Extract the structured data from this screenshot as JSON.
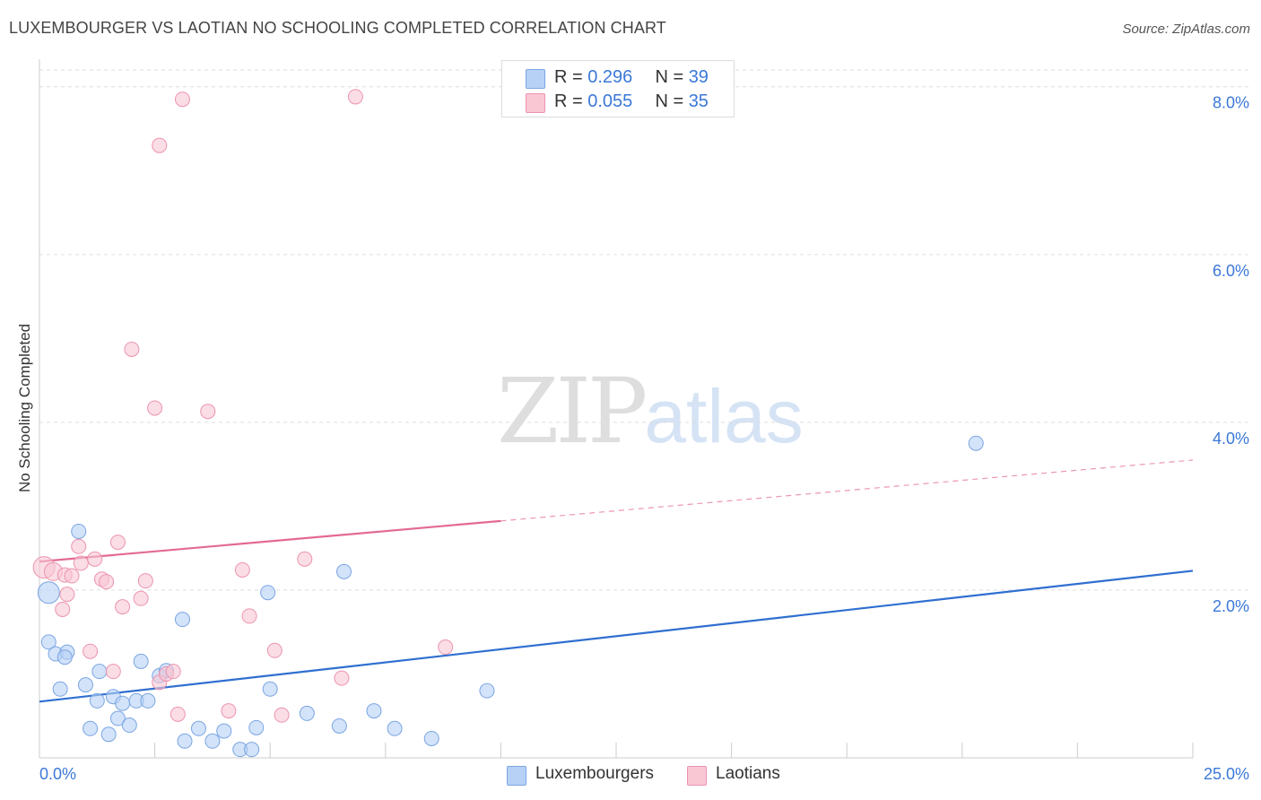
{
  "header": {
    "title": "LUXEMBOURGER VS LAOTIAN NO SCHOOLING COMPLETED CORRELATION CHART",
    "source": "Source: ZipAtlas.com"
  },
  "watermark": {
    "zip": "ZIP",
    "atlas": "atlas"
  },
  "legend": {
    "series": [
      {
        "r_label": "R =",
        "r_value": "0.296",
        "n_label": "N =",
        "n_value": "39"
      },
      {
        "r_label": "R =",
        "r_value": "0.055",
        "n_label": "N =",
        "n_value": "35"
      }
    ]
  },
  "bottom_legend": [
    "Luxembourgers",
    "Laotians"
  ],
  "chart_data": {
    "type": "scatter",
    "title": "LUXEMBOURGER VS LAOTIAN NO SCHOOLING COMPLETED CORRELATION CHART",
    "xlabel": "",
    "ylabel": "No Schooling Completed",
    "xlim": [
      0,
      25
    ],
    "ylim": [
      0,
      8.2
    ],
    "x_tick_labels": [
      {
        "value": 0,
        "label": "0.0%"
      },
      {
        "value": 25,
        "label": "25.0%"
      }
    ],
    "y_tick_labels": [
      {
        "value": 2,
        "label": "2.0%"
      },
      {
        "value": 4,
        "label": "4.0%"
      },
      {
        "value": 6,
        "label": "6.0%"
      },
      {
        "value": 8,
        "label": "8.0%"
      }
    ],
    "colors": {
      "Luxembourgers": {
        "fill": "#b6d1f5",
        "stroke": "#7aa5e3",
        "line": "#2f6fd0",
        "swatch": "#b6d1f5"
      },
      "Laotians": {
        "fill": "#f9c6d4",
        "stroke": "#ec94b0",
        "line": "#e36a92",
        "swatch": "#f9c6d4"
      }
    },
    "series": [
      {
        "name": "Luxembourgers",
        "r": 0.296,
        "n": 39,
        "trend": {
          "x0": 0,
          "y0": 0.67,
          "x1": 25,
          "y1": 2.23,
          "solid_until": 25
        },
        "points": [
          [
            0.2,
            1.97,
            12
          ],
          [
            0.85,
            2.7,
            8
          ],
          [
            0.2,
            1.38,
            8
          ],
          [
            0.35,
            1.24,
            8
          ],
          [
            0.6,
            1.26,
            8
          ],
          [
            0.45,
            0.82,
            8
          ],
          [
            0.55,
            1.2,
            8
          ],
          [
            1.0,
            0.87,
            8
          ],
          [
            1.3,
            1.03,
            8
          ],
          [
            1.25,
            0.68,
            8
          ],
          [
            1.6,
            0.73,
            8
          ],
          [
            1.8,
            0.65,
            8
          ],
          [
            2.1,
            0.68,
            8
          ],
          [
            2.35,
            0.68,
            8
          ],
          [
            2.2,
            1.15,
            8
          ],
          [
            2.6,
            0.98,
            8
          ],
          [
            2.75,
            1.04,
            8
          ],
          [
            1.1,
            0.35,
            8
          ],
          [
            1.5,
            0.28,
            8
          ],
          [
            1.7,
            0.47,
            8
          ],
          [
            1.95,
            0.39,
            8
          ],
          [
            3.1,
            1.65,
            8
          ],
          [
            3.15,
            0.2,
            8
          ],
          [
            3.45,
            0.35,
            8
          ],
          [
            3.75,
            0.2,
            8
          ],
          [
            4.0,
            0.32,
            8
          ],
          [
            4.35,
            0.1,
            8
          ],
          [
            4.6,
            0.1,
            8
          ],
          [
            4.7,
            0.36,
            8
          ],
          [
            4.95,
            1.97,
            8
          ],
          [
            5.0,
            0.82,
            8
          ],
          [
            5.8,
            0.53,
            8
          ],
          [
            6.5,
            0.38,
            8
          ],
          [
            6.6,
            2.22,
            8
          ],
          [
            7.25,
            0.56,
            8
          ],
          [
            7.7,
            0.35,
            8
          ],
          [
            8.5,
            0.23,
            8
          ],
          [
            9.7,
            0.8,
            8
          ],
          [
            20.3,
            3.75,
            8
          ]
        ]
      },
      {
        "name": "Laotians",
        "r": 0.055,
        "n": 35,
        "trend": {
          "x0": 0,
          "y0": 2.34,
          "x1": 25,
          "y1": 3.55,
          "solid_until": 10
        },
        "points": [
          [
            0.1,
            2.27,
            12
          ],
          [
            0.3,
            2.22,
            10
          ],
          [
            0.5,
            1.77,
            8
          ],
          [
            0.55,
            2.18,
            8
          ],
          [
            0.6,
            1.95,
            8
          ],
          [
            0.7,
            2.17,
            8
          ],
          [
            0.85,
            2.52,
            8
          ],
          [
            0.9,
            2.32,
            8
          ],
          [
            1.2,
            2.37,
            8
          ],
          [
            1.35,
            2.13,
            8
          ],
          [
            1.45,
            2.1,
            8
          ],
          [
            1.6,
            1.03,
            8
          ],
          [
            1.7,
            2.57,
            8
          ],
          [
            1.8,
            1.8,
            8
          ],
          [
            2.2,
            1.9,
            8
          ],
          [
            2.3,
            2.11,
            8
          ],
          [
            1.1,
            1.27,
            8
          ],
          [
            2.0,
            4.87,
            8
          ],
          [
            2.5,
            4.17,
            8
          ],
          [
            2.6,
            7.3,
            8
          ],
          [
            3.1,
            7.85,
            8
          ],
          [
            3.65,
            4.13,
            8
          ],
          [
            6.85,
            7.88,
            8
          ],
          [
            2.6,
            0.9,
            8
          ],
          [
            2.75,
            1.0,
            8
          ],
          [
            2.9,
            1.03,
            8
          ],
          [
            3.0,
            0.52,
            8
          ],
          [
            4.1,
            0.56,
            8
          ],
          [
            4.4,
            2.24,
            8
          ],
          [
            4.55,
            1.69,
            8
          ],
          [
            5.1,
            1.28,
            8
          ],
          [
            5.25,
            0.51,
            8
          ],
          [
            5.75,
            2.37,
            8
          ],
          [
            6.55,
            0.95,
            8
          ],
          [
            8.8,
            1.32,
            8
          ]
        ]
      }
    ]
  }
}
